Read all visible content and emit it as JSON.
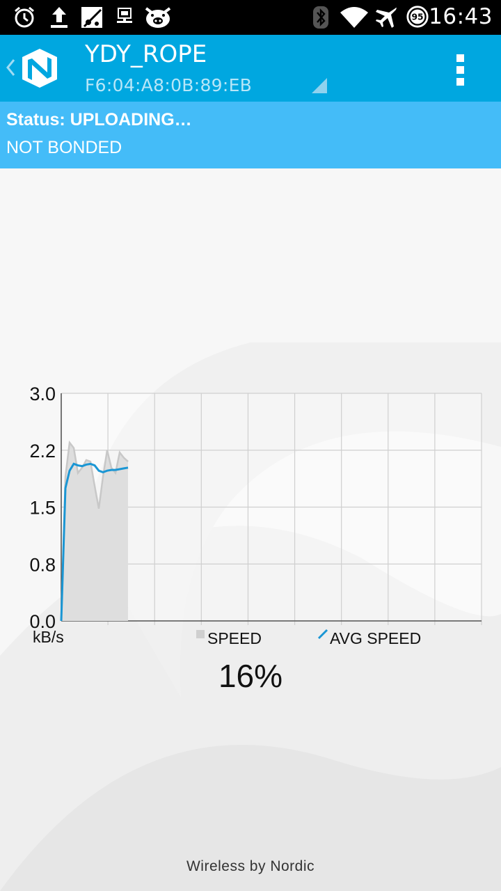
{
  "statusbar": {
    "time": "16:43",
    "battery_level": "95",
    "icons": [
      "alarm-icon",
      "upload-icon",
      "blocked-app-icon",
      "usb-debug-icon",
      "pig-icon",
      "bluetooth-icon",
      "wifi-icon",
      "airplane-icon",
      "battery-icon"
    ]
  },
  "actionbar": {
    "title": "YDY_ROPE",
    "subtitle": "F6:04:A8:0B:89:EB"
  },
  "status": {
    "line": "Status: UPLOADING…",
    "bond": "NOT BONDED"
  },
  "chart_data": {
    "type": "area",
    "y_unit_label": "kB/s",
    "yticks": [
      "3.0",
      "2.2",
      "1.5",
      "0.8",
      "0.0"
    ],
    "ylim": [
      0,
      3.0
    ],
    "grid": true,
    "x_divisions": 9,
    "legend_position": "bottom",
    "series": [
      {
        "name": "SPEED",
        "style": "area",
        "color": "#c8c8c8",
        "values": [
          0,
          1.9,
          2.35,
          2.28,
          1.95,
          2.02,
          2.12,
          2.1,
          1.78,
          1.48,
          1.9,
          2.25,
          2.02,
          1.95,
          2.22,
          2.15,
          2.1
        ]
      },
      {
        "name": "AVG SPEED",
        "style": "line",
        "color": "#1a96d4",
        "values": [
          0,
          1.75,
          1.98,
          2.07,
          2.05,
          2.04,
          2.06,
          2.07,
          2.05,
          1.98,
          1.96,
          1.98,
          1.99,
          1.99,
          2.0,
          2.01,
          2.02
        ]
      }
    ]
  },
  "progress": {
    "percent_label": "16%",
    "value": 16
  },
  "footer": {
    "text": "Wireless by Nordic"
  }
}
